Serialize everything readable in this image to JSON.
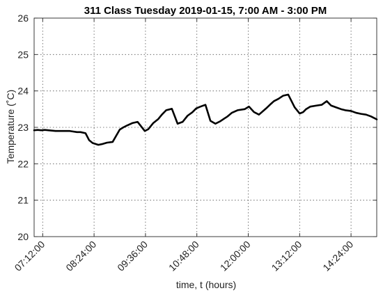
{
  "chart_data": {
    "type": "line",
    "title": "311 Class Tuesday 2019-01-15, 7:00 AM - 3:00 PM",
    "xlabel": "time, t (hours)",
    "ylabel": "Temperature (˚C)",
    "xlim": [
      "07:00:00",
      "15:00:00"
    ],
    "ylim": [
      20,
      26
    ],
    "grid": true,
    "x_ticks": [
      "07:12:00",
      "08:24:00",
      "09:36:00",
      "10:48:00",
      "12:00:00",
      "13:12:00",
      "14:24:00"
    ],
    "y_ticks": [
      20,
      21,
      22,
      23,
      24,
      25,
      26
    ],
    "series": [
      {
        "color": "#000000",
        "x": [
          "07:00",
          "07:05",
          "07:10",
          "07:15",
          "07:20",
          "07:30",
          "07:40",
          "07:50",
          "08:00",
          "08:05",
          "08:12",
          "08:17",
          "08:22",
          "08:30",
          "08:35",
          "08:42",
          "08:50",
          "09:00",
          "09:05",
          "09:10",
          "09:18",
          "09:25",
          "09:35",
          "09:40",
          "09:47",
          "09:54",
          "09:59",
          "10:05",
          "10:13",
          "10:21",
          "10:28",
          "10:35",
          "10:42",
          "10:47",
          "10:53",
          "11:00",
          "11:07",
          "11:14",
          "11:21",
          "11:27",
          "11:31",
          "11:37",
          "11:45",
          "11:55",
          "12:01",
          "12:08",
          "12:15",
          "12:25",
          "12:32",
          "12:36",
          "12:42",
          "12:49",
          "12:56",
          "13:05",
          "13:12",
          "13:17",
          "13:21",
          "13:27",
          "13:36",
          "13:43",
          "13:50",
          "13:56",
          "14:03",
          "14:10",
          "14:16",
          "14:24",
          "14:31",
          "14:38",
          "14:45",
          "14:52",
          "15:00"
        ],
        "y": [
          22.92,
          22.93,
          22.92,
          22.93,
          22.92,
          22.9,
          22.9,
          22.9,
          22.87,
          22.87,
          22.84,
          22.65,
          22.57,
          22.52,
          22.54,
          22.58,
          22.6,
          22.94,
          23.0,
          23.05,
          23.12,
          23.15,
          22.9,
          22.95,
          23.12,
          23.23,
          23.35,
          23.47,
          23.51,
          23.1,
          23.15,
          23.32,
          23.42,
          23.52,
          23.57,
          23.62,
          23.18,
          23.1,
          23.17,
          23.25,
          23.3,
          23.4,
          23.47,
          23.5,
          23.57,
          23.42,
          23.35,
          23.52,
          23.65,
          23.72,
          23.78,
          23.87,
          23.9,
          23.55,
          23.38,
          23.42,
          23.5,
          23.57,
          23.6,
          23.62,
          23.72,
          23.6,
          23.55,
          23.5,
          23.47,
          23.45,
          23.4,
          23.37,
          23.35,
          23.3,
          23.22
        ]
      }
    ]
  }
}
